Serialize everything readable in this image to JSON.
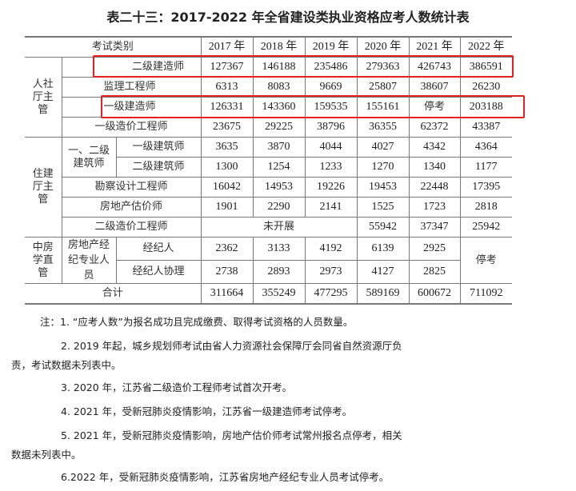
{
  "title": "表二十三：2017-2022 年全省建设类执业资格应考人数统计表",
  "table": {
    "header": {
      "category": "考试类别",
      "years": [
        "2017 年",
        "2018 年",
        "2019 年",
        "2020 年",
        "2021 年",
        "2022 年"
      ]
    },
    "groups": {
      "rensheting": "人社厅主管",
      "zhujianting": "住建厅主管",
      "zhongfangxue": "中房学直管",
      "architects": "一、二级建筑师",
      "brokers": "房地产经纪专业人员"
    },
    "rows": [
      {
        "name": "二级建造师",
        "values": [
          "127367",
          "146188",
          "235486",
          "279363",
          "426743",
          "386591"
        ],
        "highlighted": true
      },
      {
        "name": "监理工程师",
        "values": [
          "6313",
          "8083",
          "9669",
          "25807",
          "38607",
          "26230"
        ]
      },
      {
        "name": "一级建造师",
        "values": [
          "126331",
          "143360",
          "159535",
          "155161",
          "停考",
          "203188"
        ],
        "highlighted": true
      },
      {
        "name": "一级造价工程师",
        "values": [
          "23675",
          "29225",
          "38796",
          "36355",
          "62372",
          "43387"
        ]
      },
      {
        "name": "一级建筑师",
        "values": [
          "3635",
          "3870",
          "4044",
          "4027",
          "4342",
          "4364"
        ]
      },
      {
        "name": "二级建筑师",
        "values": [
          "1300",
          "1254",
          "1233",
          "1270",
          "1340",
          "1177"
        ]
      },
      {
        "name": "勘察设计工程师",
        "values": [
          "16042",
          "14953",
          "19226",
          "19453",
          "22448",
          "17395"
        ]
      },
      {
        "name": "房地产估价师",
        "values": [
          "1901",
          "2290",
          "2141",
          "1525",
          "1723",
          "2818"
        ]
      },
      {
        "name": "二级造价工程师",
        "merged": "未开展",
        "values": [
          "55942",
          "37347",
          "25942"
        ]
      },
      {
        "name": "经纪人",
        "values": [
          "2362",
          "3133",
          "4192",
          "6139",
          "2925"
        ]
      },
      {
        "name": "经纪人协理",
        "values": [
          "2738",
          "2893",
          "2973",
          "4127",
          "2825"
        ]
      }
    ],
    "broker_2022": "停考",
    "total": {
      "name": "合计",
      "values": [
        "311664",
        "355249",
        "477295",
        "589169",
        "600672",
        "711092"
      ]
    }
  },
  "highlight_color": "#e8201d",
  "notes": [
    "注：1. “应考人数”为报名成功且完成缴费、取得考试资格的人员数量。",
    "2. 2019 年起，城乡规划师考试由省人力资源社会保障厅会同省自然资源厅负",
    "责，考试数据未列表中。",
    "3. 2020 年，江苏省二级造价工程师考试首次开考。",
    "4. 2021 年，受新冠肺炎疫情影响，江苏省一级建造师考试停考。",
    "5. 2021 年，受新冠肺炎疫情影响，房地产估价师考试常州报名点停考，相关",
    "数据未列表中。",
    "6.2022 年，受新冠肺炎疫情影响，江苏省房地产经纪专业人员考试停考。"
  ]
}
